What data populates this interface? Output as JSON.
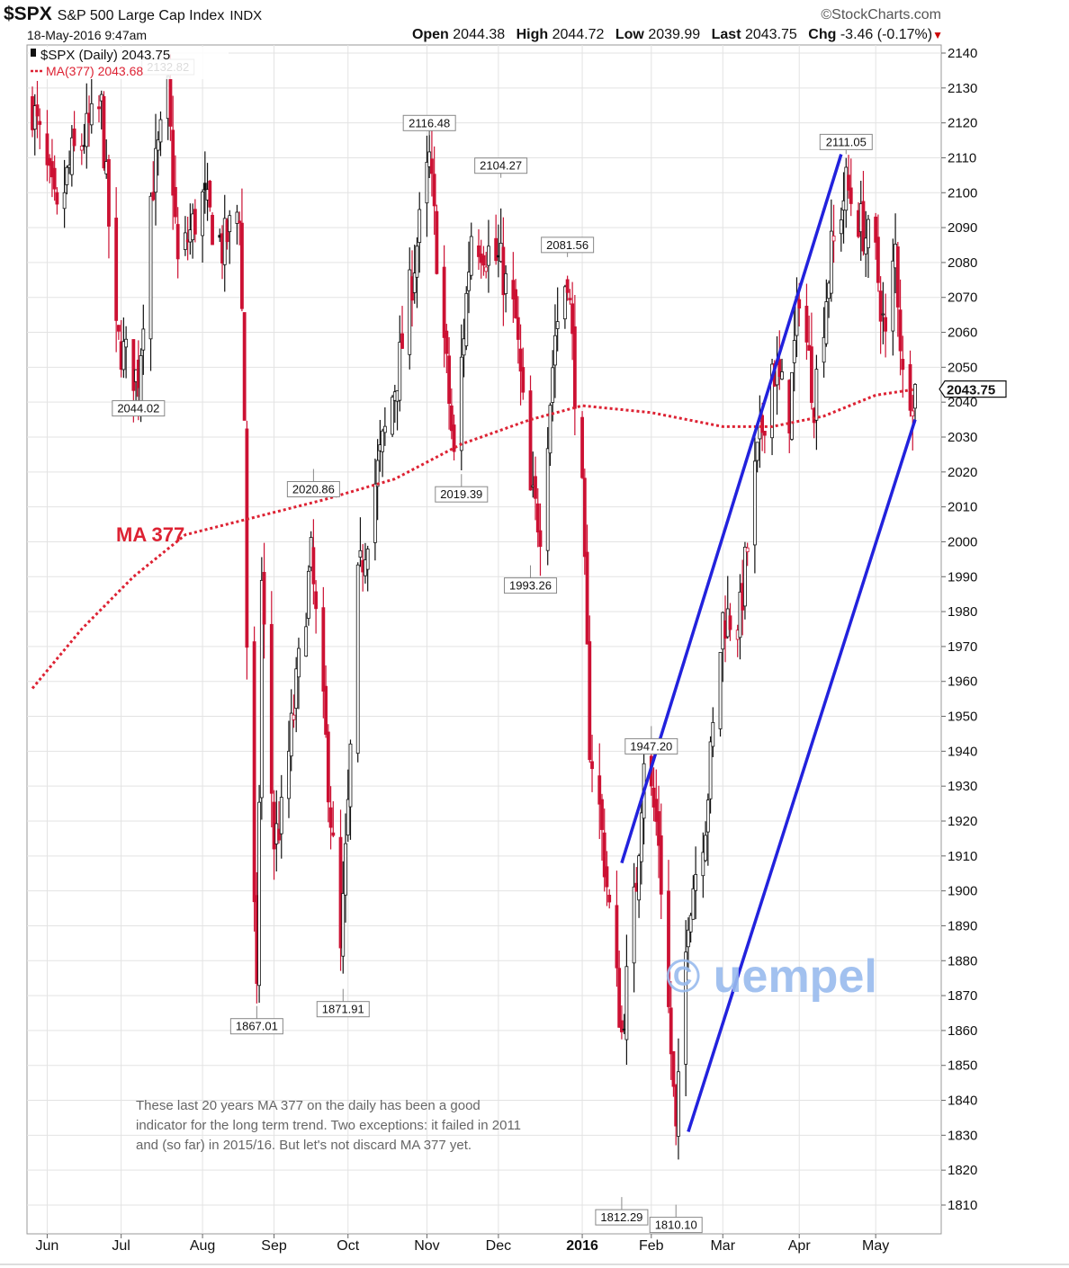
{
  "header": {
    "symbol": "$SPX",
    "name": "S&P 500 Large Cap Index",
    "exchange": "INDX",
    "brand": "©StockCharts.com",
    "datetime": "18-May-2016 9:47am",
    "open_label": "Open",
    "open": "2044.38",
    "high_label": "High",
    "high": "2044.72",
    "low_label": "Low",
    "low": "2039.99",
    "last_label": "Last",
    "last": "2043.75",
    "chg_label": "Chg",
    "chg": "-3.46 (-0.17%)",
    "chg_arrow": "▼"
  },
  "annotation_text": "These last 20 years MA 377 on the daily has been a good indicator for the long term trend. Two exceptions: it failed in 2011 and (so far) in 2015/16. But let's not discard MA 377 yet.",
  "colors": {
    "up": "#111111",
    "down": "#cc1133",
    "ma": "#dd2233",
    "channel": "#2222dd",
    "watermark": "#99bbee",
    "grid": "#e3e3e3"
  },
  "chart_data": {
    "type": "line",
    "ylim": [
      1800,
      2140
    ],
    "yticks": [
      2140,
      2130,
      2120,
      2110,
      2100,
      2090,
      2080,
      2070,
      2060,
      2050,
      2040,
      2030,
      2020,
      2010,
      2000,
      1990,
      1980,
      1970,
      1960,
      1950,
      1940,
      1930,
      1920,
      1910,
      1900,
      1890,
      1880,
      1870,
      1860,
      1850,
      1840,
      1830,
      1820,
      1810
    ],
    "xlim": [
      "2015-05-26",
      "2016-05-18"
    ],
    "xticks": [
      {
        "label": "Jun",
        "date": "2015-06-01"
      },
      {
        "label": "Jul",
        "date": "2015-07-01"
      },
      {
        "label": "Aug",
        "date": "2015-08-03"
      },
      {
        "label": "Sep",
        "date": "2015-09-01"
      },
      {
        "label": "Oct",
        "date": "2015-10-01"
      },
      {
        "label": "Nov",
        "date": "2015-11-02"
      },
      {
        "label": "Dec",
        "date": "2015-12-01"
      },
      {
        "label": "2016",
        "date": "2016-01-04"
      },
      {
        "label": "Feb",
        "date": "2016-02-01"
      },
      {
        "label": "Mar",
        "date": "2016-03-01"
      },
      {
        "label": "Apr",
        "date": "2016-04-01"
      },
      {
        "label": "May",
        "date": "2016-05-02"
      }
    ],
    "grid": true,
    "legend": [
      {
        "label": "$SPX (Daily) 2043.75",
        "style": "candles"
      },
      {
        "label": "MA(377) 2043.68",
        "style": "dotted"
      }
    ],
    "legend_placement": "top-left",
    "last_price_label": "2043.75",
    "price": [
      [
        "2015-05-26",
        2125
      ],
      [
        "2015-06-05",
        2092
      ],
      [
        "2015-06-11",
        2110
      ],
      [
        "2015-06-23",
        2124
      ],
      [
        "2015-06-29",
        2058
      ],
      [
        "2015-07-08",
        2046
      ],
      [
        "2015-07-13",
        2099
      ],
      [
        "2015-07-20",
        2128
      ],
      [
        "2015-07-24",
        2079
      ],
      [
        "2015-08-03",
        2098
      ],
      [
        "2015-08-11",
        2084
      ],
      [
        "2015-08-18",
        2096
      ],
      [
        "2015-08-20",
        2036
      ],
      [
        "2015-08-21",
        1971
      ],
      [
        "2015-08-24",
        1893
      ],
      [
        "2015-08-25",
        1867
      ],
      [
        "2015-08-27",
        1988
      ],
      [
        "2015-09-01",
        1914
      ],
      [
        "2015-09-04",
        1921
      ],
      [
        "2015-09-16",
        1995
      ],
      [
        "2015-09-22",
        1942
      ],
      [
        "2015-09-28",
        1881
      ],
      [
        "2015-10-01",
        1923
      ],
      [
        "2015-10-05",
        1987
      ],
      [
        "2015-10-12",
        2017
      ],
      [
        "2015-10-22",
        2052
      ],
      [
        "2015-11-03",
        2109
      ],
      [
        "2015-11-13",
        2023
      ],
      [
        "2015-11-20",
        2089
      ],
      [
        "2015-12-02",
        2079
      ],
      [
        "2015-12-08",
        2063
      ],
      [
        "2015-12-14",
        2013
      ],
      [
        "2015-12-18",
        2005
      ],
      [
        "2015-12-24",
        2060
      ],
      [
        "2015-12-29",
        2078
      ],
      [
        "2016-01-04",
        2012
      ],
      [
        "2016-01-07",
        1943
      ],
      [
        "2016-01-11",
        1923
      ],
      [
        "2016-01-20",
        1859
      ],
      [
        "2016-01-26",
        1903
      ],
      [
        "2016-01-29",
        1940
      ],
      [
        "2016-02-04",
        1915
      ],
      [
        "2016-02-11",
        1829
      ],
      [
        "2016-02-16",
        1895
      ],
      [
        "2016-02-23",
        1921
      ],
      [
        "2016-03-01",
        1978
      ],
      [
        "2016-03-08",
        1979
      ],
      [
        "2016-03-14",
        2019
      ],
      [
        "2016-03-21",
        2051
      ],
      [
        "2016-03-28",
        2037
      ],
      [
        "2016-04-01",
        2073
      ],
      [
        "2016-04-07",
        2041
      ],
      [
        "2016-04-14",
        2083
      ],
      [
        "2016-04-20",
        2102
      ],
      [
        "2016-04-26",
        2091
      ],
      [
        "2016-05-02",
        2081
      ],
      [
        "2016-05-06",
        2057
      ],
      [
        "2016-05-10",
        2084
      ],
      [
        "2016-05-13",
        2046
      ],
      [
        "2016-05-18",
        2043.75
      ]
    ],
    "ma377": [
      [
        "2015-05-26",
        1958
      ],
      [
        "2015-06-15",
        1975
      ],
      [
        "2015-07-06",
        1990
      ],
      [
        "2015-07-27",
        2002
      ],
      [
        "2015-08-24",
        2007
      ],
      [
        "2015-09-21",
        2012
      ],
      [
        "2015-10-20",
        2018
      ],
      [
        "2015-11-16",
        2028
      ],
      [
        "2015-12-14",
        2035
      ],
      [
        "2016-01-04",
        2039
      ],
      [
        "2016-02-01",
        2037
      ],
      [
        "2016-03-01",
        2033
      ],
      [
        "2016-03-21",
        2033
      ],
      [
        "2016-04-11",
        2036
      ],
      [
        "2016-05-02",
        2042
      ],
      [
        "2016-05-18",
        2043.68
      ]
    ],
    "annotations": [
      {
        "label": "2132.82",
        "date": "2015-07-20",
        "value": 2132.82
      },
      {
        "label": "2044.02",
        "date": "2015-07-08",
        "value": 2044.02
      },
      {
        "label": "1867.01",
        "date": "2015-08-25",
        "value": 1867.01
      },
      {
        "label": "2020.86",
        "date": "2015-09-17",
        "value": 2020.86
      },
      {
        "label": "1871.91",
        "date": "2015-09-29",
        "value": 1871.91
      },
      {
        "label": "2116.48",
        "date": "2015-11-03",
        "value": 2116.48
      },
      {
        "label": "2019.39",
        "date": "2015-11-16",
        "value": 2019.39
      },
      {
        "label": "2104.27",
        "date": "2015-12-02",
        "value": 2104.27
      },
      {
        "label": "1993.26",
        "date": "2015-12-14",
        "value": 1993.26
      },
      {
        "label": "2081.56",
        "date": "2015-12-29",
        "value": 2081.56
      },
      {
        "label": "1812.29",
        "date": "2016-01-20",
        "value": 1812.29
      },
      {
        "label": "1947.20",
        "date": "2016-02-01",
        "value": 1947.2
      },
      {
        "label": "1810.10",
        "date": "2016-02-11",
        "value": 1810.1
      },
      {
        "label": "2111.05",
        "date": "2016-04-20",
        "value": 2111.05
      }
    ],
    "channel_upper": [
      [
        "2016-01-20",
        1908
      ],
      [
        "2016-04-18",
        2111
      ]
    ],
    "channel_lower": [
      [
        "2016-02-16",
        1831
      ],
      [
        "2016-05-18",
        2035
      ]
    ],
    "ma_label": "MA 377",
    "watermark": "© uempel"
  }
}
